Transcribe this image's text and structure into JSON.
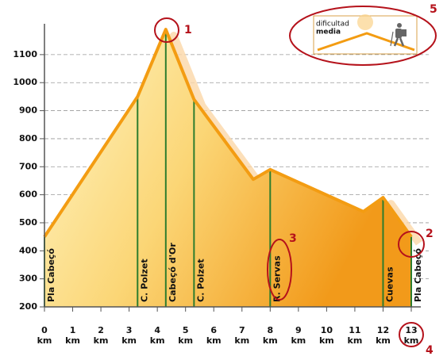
{
  "chart_data": {
    "type": "area",
    "x": [
      0,
      3.3,
      4.3,
      5.3,
      7.4,
      8,
      11.3,
      12,
      13
    ],
    "values": [
      450,
      950,
      1190,
      940,
      655,
      690,
      540,
      590,
      450
    ],
    "color": "#f39c12",
    "xlim": [
      0,
      13
    ],
    "ylim": [
      200,
      1210
    ],
    "xticks": [
      0,
      1,
      2,
      3,
      4,
      5,
      6,
      7,
      8,
      9,
      10,
      11,
      12,
      13
    ],
    "yticks": [
      200,
      300,
      400,
      500,
      600,
      700,
      800,
      900,
      1000,
      1100
    ],
    "x_unit": "km",
    "grid": true,
    "markers": [
      {
        "x": 0,
        "elevation": 450,
        "label": "Pla Cabeçó"
      },
      {
        "x": 3.3,
        "elevation": 950,
        "label": "C. Polzet"
      },
      {
        "x": 4.3,
        "elevation": 1190,
        "label": "Cabeçó d'Or"
      },
      {
        "x": 5.3,
        "elevation": 940,
        "label": "C. Polzet"
      },
      {
        "x": 8,
        "elevation": 690,
        "label": "R. Servas"
      },
      {
        "x": 12,
        "elevation": 590,
        "label": "Cuevas"
      },
      {
        "x": 13,
        "elevation": 450,
        "label": "Pla Cabeçó"
      }
    ],
    "annotations": [
      "1",
      "2",
      "3",
      "4",
      "5"
    ],
    "difficulty": {
      "line1": "dificultad",
      "line2": "media"
    }
  }
}
